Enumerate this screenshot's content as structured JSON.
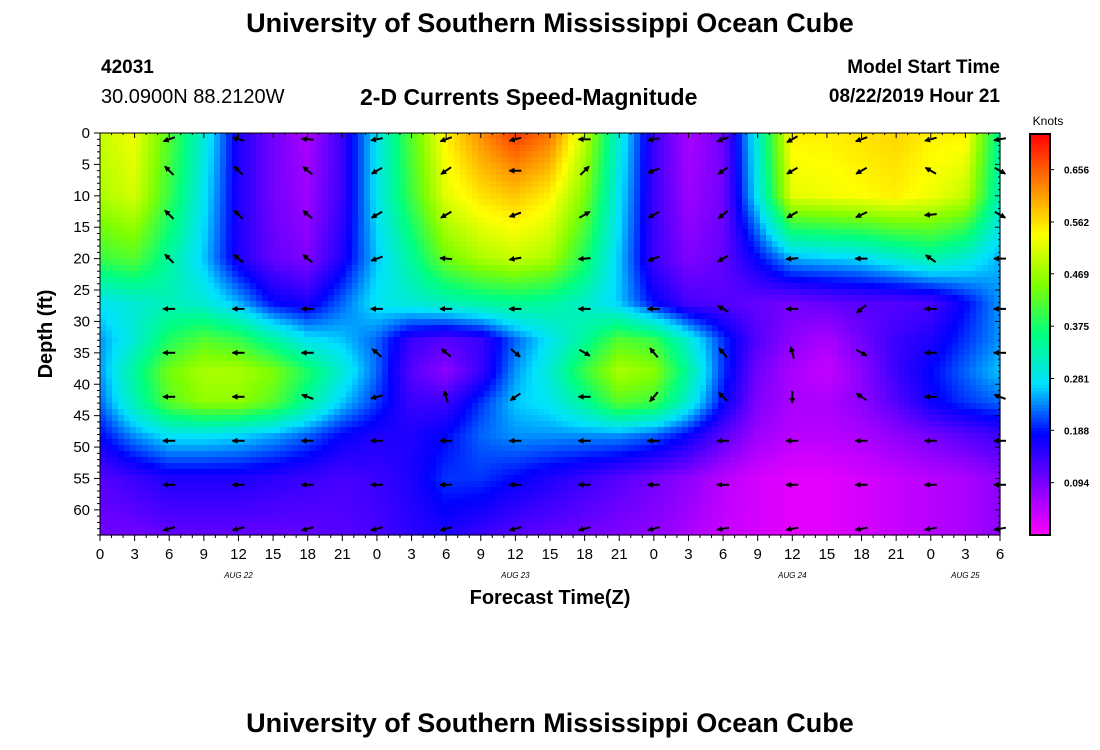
{
  "header": {
    "title": "University of Southern Mississippi Ocean Cube",
    "station_id": "42031",
    "station_coords": "30.0900N 88.2120W",
    "chart_title": "2-D Currents Speed-Magnitude",
    "model_start_label": "Model Start Time",
    "model_start_value": "08/22/2019 Hour 21"
  },
  "footer": {
    "title": "University of Southern Mississippi Ocean Cube"
  },
  "chart_data": {
    "type": "heatmap",
    "title": "2-D Currents Speed-Magnitude",
    "xlabel": "Forecast Time(Z)",
    "ylabel": "Depth (ft)",
    "x_ticks": [
      "0",
      "3",
      "6",
      "9",
      "12",
      "15",
      "18",
      "21",
      "0",
      "3",
      "6",
      "9",
      "12",
      "15",
      "18",
      "21",
      "0",
      "3",
      "6",
      "9",
      "12",
      "15",
      "18",
      "21",
      "0",
      "3",
      "6"
    ],
    "date_labels": [
      {
        "label": "AUG 22",
        "tick_index": 4
      },
      {
        "label": "AUG 23",
        "tick_index": 12
      },
      {
        "label": "AUG 24",
        "tick_index": 20
      },
      {
        "label": "AUG 25",
        "tick_index": 25
      }
    ],
    "y_ticks": [
      0,
      5,
      10,
      15,
      20,
      25,
      30,
      35,
      40,
      45,
      50,
      55,
      60
    ],
    "ylim": [
      0,
      64
    ],
    "xlim_hours": [
      0,
      78
    ],
    "colorbar": {
      "unit": "Knots",
      "range": [
        0.0,
        0.72
      ],
      "ticks": [
        "0.656",
        "0.562",
        "0.469",
        "0.375",
        "0.281",
        "0.188",
        "0.094"
      ],
      "tick_values": [
        0.656,
        0.562,
        0.469,
        0.375,
        0.281,
        0.188,
        0.094
      ],
      "colormap": [
        "#ff00ff",
        "#8000ff",
        "#0000ff",
        "#00e0ff",
        "#00ff80",
        "#80ff00",
        "#ffff00",
        "#ff8000",
        "#ff0000"
      ]
    },
    "speed_grid": {
      "hours": [
        0,
        3,
        6,
        9,
        12,
        15,
        18,
        21,
        24,
        27,
        30,
        33,
        36,
        39,
        42,
        45,
        48,
        51,
        54,
        57,
        60,
        63,
        66,
        69,
        72,
        75,
        78
      ],
      "depths": [
        0,
        10,
        20,
        27,
        33,
        38,
        43,
        48,
        55,
        64
      ],
      "values": [
        [
          0.5,
          0.53,
          0.42,
          0.3,
          0.16,
          0.1,
          0.06,
          0.14,
          0.28,
          0.42,
          0.55,
          0.62,
          0.68,
          0.64,
          0.5,
          0.3,
          0.14,
          0.06,
          0.1,
          0.3,
          0.55,
          0.55,
          0.56,
          0.57,
          0.55,
          0.55,
          0.34
        ],
        [
          0.48,
          0.51,
          0.4,
          0.28,
          0.16,
          0.1,
          0.07,
          0.14,
          0.28,
          0.4,
          0.52,
          0.56,
          0.58,
          0.55,
          0.45,
          0.28,
          0.14,
          0.07,
          0.1,
          0.28,
          0.52,
          0.53,
          0.54,
          0.55,
          0.53,
          0.5,
          0.32
        ],
        [
          0.4,
          0.42,
          0.34,
          0.26,
          0.16,
          0.11,
          0.09,
          0.16,
          0.26,
          0.34,
          0.44,
          0.48,
          0.5,
          0.48,
          0.38,
          0.26,
          0.14,
          0.09,
          0.11,
          0.18,
          0.25,
          0.26,
          0.27,
          0.3,
          0.33,
          0.3,
          0.25
        ],
        [
          0.28,
          0.3,
          0.32,
          0.3,
          0.25,
          0.18,
          0.16,
          0.22,
          0.28,
          0.3,
          0.32,
          0.34,
          0.35,
          0.34,
          0.31,
          0.26,
          0.18,
          0.13,
          0.12,
          0.11,
          0.1,
          0.11,
          0.12,
          0.12,
          0.13,
          0.18,
          0.24
        ],
        [
          0.24,
          0.3,
          0.38,
          0.42,
          0.4,
          0.34,
          0.28,
          0.26,
          0.22,
          0.14,
          0.12,
          0.14,
          0.22,
          0.28,
          0.34,
          0.42,
          0.4,
          0.3,
          0.2,
          0.12,
          0.08,
          0.06,
          0.1,
          0.14,
          0.16,
          0.2,
          0.24
        ],
        [
          0.24,
          0.34,
          0.44,
          0.48,
          0.48,
          0.45,
          0.38,
          0.3,
          0.22,
          0.12,
          0.08,
          0.14,
          0.24,
          0.3,
          0.4,
          0.48,
          0.46,
          0.34,
          0.2,
          0.1,
          0.06,
          0.04,
          0.08,
          0.14,
          0.18,
          0.22,
          0.26
        ],
        [
          0.22,
          0.32,
          0.42,
          0.46,
          0.46,
          0.42,
          0.34,
          0.26,
          0.2,
          0.14,
          0.14,
          0.2,
          0.26,
          0.28,
          0.34,
          0.42,
          0.4,
          0.3,
          0.18,
          0.09,
          0.06,
          0.06,
          0.08,
          0.12,
          0.17,
          0.2,
          0.22
        ],
        [
          0.18,
          0.24,
          0.28,
          0.28,
          0.27,
          0.25,
          0.22,
          0.18,
          0.16,
          0.16,
          0.18,
          0.22,
          0.24,
          0.24,
          0.24,
          0.24,
          0.22,
          0.18,
          0.12,
          0.07,
          0.05,
          0.05,
          0.06,
          0.08,
          0.1,
          0.12,
          0.14
        ],
        [
          0.12,
          0.14,
          0.16,
          0.16,
          0.16,
          0.15,
          0.14,
          0.13,
          0.14,
          0.16,
          0.2,
          0.2,
          0.18,
          0.16,
          0.14,
          0.12,
          0.1,
          0.08,
          0.05,
          0.03,
          0.02,
          0.02,
          0.03,
          0.04,
          0.05,
          0.06,
          0.08
        ],
        [
          0.1,
          0.1,
          0.11,
          0.11,
          0.11,
          0.11,
          0.11,
          0.12,
          0.13,
          0.15,
          0.16,
          0.14,
          0.12,
          0.11,
          0.1,
          0.09,
          0.08,
          0.06,
          0.04,
          0.03,
          0.02,
          0.02,
          0.03,
          0.04,
          0.05,
          0.06,
          0.08
        ]
      ]
    },
    "vectors": {
      "hours": [
        6,
        12,
        18,
        24,
        30,
        36,
        42,
        48,
        54,
        60,
        66,
        72,
        78
      ],
      "depths": [
        1,
        6,
        13,
        20,
        28,
        35,
        42,
        49,
        56,
        63
      ],
      "angles_deg": [
        [
          200,
          165,
          175,
          190,
          200,
          195,
          180,
          190,
          200,
          210,
          200,
          195,
          190
        ],
        [
          135,
          135,
          140,
          210,
          215,
          180,
          45,
          200,
          215,
          210,
          210,
          150,
          330
        ],
        [
          135,
          135,
          140,
          210,
          210,
          200,
          30,
          210,
          220,
          210,
          205,
          185,
          330
        ],
        [
          135,
          140,
          140,
          200,
          175,
          190,
          185,
          200,
          210,
          185,
          180,
          145,
          180
        ],
        [
          180,
          180,
          180,
          180,
          180,
          180,
          180,
          180,
          150,
          180,
          220,
          180,
          180
        ],
        [
          180,
          180,
          180,
          140,
          140,
          320,
          330,
          130,
          130,
          105,
          330,
          180,
          180
        ],
        [
          180,
          180,
          160,
          195,
          105,
          215,
          180,
          230,
          135,
          270,
          145,
          180,
          160
        ],
        [
          180,
          180,
          180,
          180,
          180,
          180,
          180,
          180,
          180,
          180,
          180,
          180,
          180
        ],
        [
          180,
          180,
          180,
          180,
          180,
          180,
          180,
          180,
          180,
          180,
          180,
          180,
          180
        ],
        [
          195,
          195,
          195,
          195,
          195,
          195,
          195,
          195,
          190,
          190,
          190,
          190,
          190
        ]
      ]
    }
  }
}
